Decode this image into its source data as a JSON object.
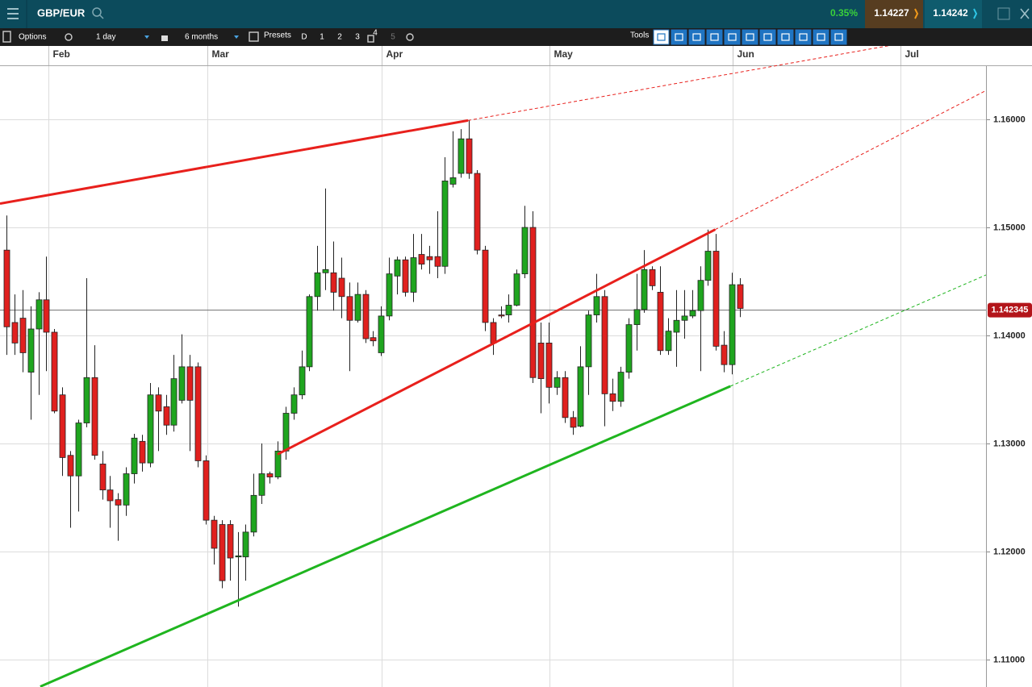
{
  "header": {
    "symbol": "GBP/EUR",
    "change": "0.35%",
    "sell": "1.14227",
    "buy": "1.14242"
  },
  "toolbar": {
    "options": "Options",
    "interval": "1 day",
    "range": "6 months",
    "presets": "Presets",
    "preset_buttons": [
      "D",
      "1",
      "2",
      "3",
      "4",
      "5"
    ],
    "tools": "Tools"
  },
  "chart_data": {
    "type": "candlestick",
    "up_color": "#1fa51f",
    "down_color": "#e0201e",
    "open": [
      1.1479,
      1.1412,
      1.1416,
      1.1366,
      1.1406,
      1.1433,
      1.1403,
      1.1345,
      1.1289,
      1.127,
      1.1319,
      1.1361,
      1.1281,
      1.1257,
      1.1248,
      1.1243,
      1.1272,
      1.1302,
      1.1282,
      1.1345,
      1.1334,
      1.1317,
      1.134,
      1.1371,
      1.1371,
      1.1284,
      1.1229,
      1.1225,
      1.1225,
      1.1195,
      1.1195,
      1.1218,
      1.1252,
      1.1272,
      1.1269,
      1.1293,
      1.1328,
      1.1345,
      1.1371,
      1.1436,
      1.1458,
      1.1458,
      1.1453,
      1.1436,
      1.1414,
      1.1438,
      1.1398,
      1.1384,
      1.1418,
      1.1455,
      1.147,
      1.144,
      1.1475,
      1.1473,
      1.1473,
      1.1464,
      1.154,
      1.155,
      1.1582,
      1.155,
      1.1479,
      1.1412,
      1.1419,
      1.1419,
      1.1428,
      1.1457,
      1.15,
      1.1393,
      1.1393,
      1.1352,
      1.1361,
      1.1324,
      1.1316,
      1.1371,
      1.1419,
      1.1436,
      1.1346,
      1.1339,
      1.1366,
      1.141,
      1.1424,
      1.1461,
      1.144,
      1.1386,
      1.1403,
      1.1414,
      1.1418,
      1.1423,
      1.1451,
      1.1478,
      1.1391,
      1.1373,
      1.1447
    ],
    "high": [
      1.1511,
      1.1438,
      1.1442,
      1.1427,
      1.144,
      1.1473,
      1.1406,
      1.1352,
      1.1293,
      1.1322,
      1.1453,
      1.1391,
      1.1293,
      1.127,
      1.1254,
      1.1278,
      1.1309,
      1.1308,
      1.1356,
      1.1352,
      1.1345,
      1.1382,
      1.1401,
      1.1382,
      1.1375,
      1.1289,
      1.1233,
      1.1229,
      1.1229,
      1.1218,
      1.1225,
      1.1272,
      1.13,
      1.1274,
      1.1302,
      1.1334,
      1.1352,
      1.1386,
      1.1438,
      1.1483,
      1.1536,
      1.1487,
      1.1472,
      1.1449,
      1.1449,
      1.1442,
      1.1404,
      1.1427,
      1.1472,
      1.1473,
      1.1473,
      1.1494,
      1.1494,
      1.1483,
      1.1515,
      1.1565,
      1.1589,
      1.1591,
      1.1599,
      1.1553,
      1.1483,
      1.1416,
      1.1427,
      1.1438,
      1.1461,
      1.152,
      1.1515,
      1.1412,
      1.1412,
      1.1367,
      1.1367,
      1.133,
      1.139,
      1.1423,
      1.1457,
      1.1442,
      1.136,
      1.1371,
      1.1416,
      1.1457,
      1.1479,
      1.1464,
      1.1464,
      1.1416,
      1.1442,
      1.1442,
      1.1442,
      1.1464,
      1.1498,
      1.1494,
      1.1404,
      1.1458,
      1.1453
    ],
    "low": [
      1.1382,
      1.1382,
      1.1366,
      1.1322,
      1.1345,
      1.1367,
      1.1328,
      1.127,
      1.1222,
      1.1237,
      1.1315,
      1.1285,
      1.1248,
      1.1222,
      1.121,
      1.1233,
      1.1263,
      1.1274,
      1.1278,
      1.1293,
      1.1308,
      1.1311,
      1.1337,
      1.1293,
      1.1278,
      1.1225,
      1.1188,
      1.1166,
      1.1173,
      1.1149,
      1.1173,
      1.1214,
      1.1244,
      1.1263,
      1.1267,
      1.1285,
      1.1322,
      1.1341,
      1.1367,
      1.1423,
      1.1442,
      1.1423,
      1.1416,
      1.1367,
      1.1412,
      1.1393,
      1.139,
      1.1381,
      1.1414,
      1.1438,
      1.1436,
      1.1431,
      1.1461,
      1.1457,
      1.1453,
      1.1457,
      1.1537,
      1.1546,
      1.1545,
      1.1475,
      1.1404,
      1.1382,
      1.1416,
      1.1412,
      1.1427,
      1.1453,
      1.1356,
      1.1328,
      1.1337,
      1.1345,
      1.1319,
      1.1308,
      1.1315,
      1.1345,
      1.1412,
      1.1316,
      1.133,
      1.1334,
      1.136,
      1.1386,
      1.1421,
      1.1442,
      1.1382,
      1.1382,
      1.1371,
      1.1397,
      1.1416,
      1.1367,
      1.1446,
      1.1386,
      1.1366,
      1.1364,
      1.1417
    ],
    "close": [
      1.1408,
      1.1393,
      1.1384,
      1.1406,
      1.1433,
      1.1403,
      1.133,
      1.1287,
      1.127,
      1.1319,
      1.1361,
      1.1289,
      1.1257,
      1.1247,
      1.1243,
      1.1272,
      1.1305,
      1.1282,
      1.1345,
      1.133,
      1.1317,
      1.136,
      1.1371,
      1.134,
      1.1284,
      1.1229,
      1.1203,
      1.1173,
      1.1194,
      1.1196,
      1.1218,
      1.1252,
      1.1272,
      1.1269,
      1.1293,
      1.1328,
      1.1345,
      1.1371,
      1.1436,
      1.1458,
      1.1461,
      1.144,
      1.1436,
      1.1414,
      1.1438,
      1.1397,
      1.1395,
      1.1418,
      1.1457,
      1.147,
      1.144,
      1.1472,
      1.1466,
      1.147,
      1.1464,
      1.1543,
      1.1546,
      1.1582,
      1.155,
      1.1479,
      1.1412,
      1.1393,
      1.1418,
      1.1428,
      1.1457,
      1.15,
      1.1361,
      1.136,
      1.1352,
      1.1361,
      1.1324,
      1.1315,
      1.1371,
      1.1419,
      1.1436,
      1.1346,
      1.1339,
      1.1366,
      1.141,
      1.1424,
      1.1461,
      1.1446,
      1.1386,
      1.1404,
      1.1414,
      1.1418,
      1.1423,
      1.1451,
      1.1478,
      1.139,
      1.1373,
      1.1447,
      1.1425
    ],
    "xlim": [
      -0.81,
      122.87
    ],
    "xticks": [
      {
        "value": 5.26,
        "label": "Feb"
      },
      {
        "value": 25.2,
        "label": "Mar"
      },
      {
        "value": 47.06,
        "label": "Apr"
      },
      {
        "value": 68.12,
        "label": "May"
      },
      {
        "value": 91.09,
        "label": "Jun"
      },
      {
        "value": 112.15,
        "label": "Jul"
      }
    ],
    "ylim": [
      1.10746,
      1.16493
    ],
    "yticks": [
      {
        "value": 1.11,
        "label": "1.11000"
      },
      {
        "value": 1.12,
        "label": "1.12000"
      },
      {
        "value": 1.13,
        "label": "1.13000"
      },
      {
        "value": 1.14,
        "label": "1.14000"
      },
      {
        "value": 1.15,
        "label": "1.15000"
      },
      {
        "value": 1.16,
        "label": "1.16000"
      }
    ],
    "grid": true,
    "last_price": 1.142345,
    "last_price_color": "#b3151a",
    "trendlines": [
      {
        "points": [
          [
            -0.81,
            1.1522
          ],
          [
            57.9,
            1.1599
          ]
        ],
        "color": "#e8201c"
      },
      {
        "points": [
          [
            34.0,
            1.129
          ],
          [
            88.9,
            1.1498
          ]
        ],
        "color": "#e8201c"
      },
      {
        "points": [
          [
            4.24,
            1.1075
          ],
          [
            90.8,
            1.1353
          ]
        ],
        "color": "#1fb51f"
      }
    ]
  }
}
